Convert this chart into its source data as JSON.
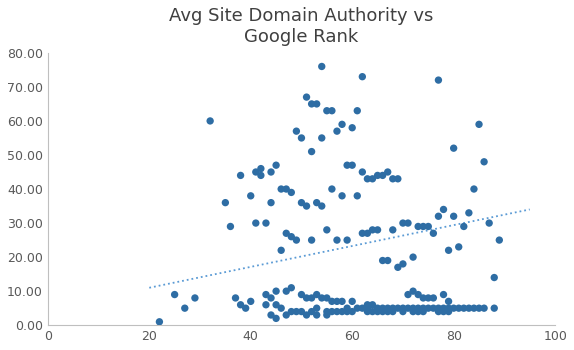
{
  "title": "Avg Site Domain Authority vs\nGoogle Rank",
  "xlim": [
    0,
    100
  ],
  "ylim": [
    0,
    80
  ],
  "xticks": [
    0,
    20,
    40,
    60,
    80,
    100
  ],
  "yticks": [
    0.0,
    10.0,
    20.0,
    30.0,
    40.0,
    50.0,
    60.0,
    70.0,
    80.0
  ],
  "dot_color": "#2E6DA4",
  "trendline_color": "#5B9BD5",
  "background_color": "#FFFFFF",
  "scatter_x": [
    22,
    25,
    27,
    29,
    32,
    35,
    36,
    37,
    38,
    38,
    39,
    40,
    40,
    41,
    41,
    42,
    42,
    43,
    43,
    43,
    44,
    44,
    44,
    44,
    45,
    45,
    45,
    45,
    46,
    46,
    46,
    47,
    47,
    47,
    47,
    48,
    48,
    48,
    48,
    49,
    49,
    49,
    50,
    50,
    50,
    50,
    51,
    51,
    51,
    51,
    52,
    52,
    52,
    52,
    52,
    53,
    53,
    53,
    53,
    53,
    54,
    54,
    54,
    54,
    55,
    55,
    55,
    55,
    55,
    56,
    56,
    56,
    56,
    57,
    57,
    57,
    57,
    58,
    58,
    58,
    58,
    59,
    59,
    59,
    59,
    60,
    60,
    60,
    60,
    61,
    61,
    61,
    62,
    62,
    62,
    62,
    63,
    63,
    63,
    63,
    63,
    64,
    64,
    64,
    64,
    65,
    65,
    65,
    65,
    66,
    66,
    66,
    66,
    67,
    67,
    67,
    67,
    68,
    68,
    68,
    68,
    69,
    69,
    69,
    70,
    70,
    70,
    70,
    71,
    71,
    71,
    72,
    72,
    72,
    72,
    73,
    73,
    73,
    73,
    74,
    74,
    74,
    74,
    75,
    75,
    75,
    76,
    76,
    76,
    77,
    77,
    77,
    77,
    78,
    78,
    78,
    78,
    79,
    79,
    79,
    79,
    80,
    80,
    80,
    81,
    81,
    82,
    82,
    83,
    83,
    84,
    84,
    85,
    85,
    86,
    86,
    87,
    88,
    88,
    89
  ],
  "scatter_y": [
    1,
    9,
    5,
    8,
    60,
    36,
    29,
    8,
    6,
    44,
    5,
    38,
    7,
    45,
    30,
    46,
    44,
    30,
    9,
    6,
    45,
    36,
    8,
    3,
    47,
    10,
    6,
    2,
    40,
    22,
    5,
    40,
    27,
    10,
    3,
    39,
    26,
    11,
    4,
    57,
    25,
    4,
    55,
    36,
    9,
    4,
    67,
    35,
    8,
    3,
    65,
    51,
    25,
    8,
    4,
    65,
    36,
    9,
    5,
    3,
    76,
    55,
    35,
    8,
    63,
    28,
    8,
    4,
    3,
    63,
    40,
    7,
    4,
    57,
    25,
    7,
    4,
    59,
    38,
    7,
    4,
    47,
    25,
    5,
    4,
    58,
    47,
    7,
    4,
    63,
    38,
    5,
    73,
    45,
    27,
    5,
    43,
    27,
    6,
    5,
    4,
    43,
    28,
    6,
    4,
    44,
    28,
    5,
    4,
    44,
    19,
    5,
    4,
    45,
    19,
    5,
    4,
    43,
    28,
    5,
    4,
    43,
    17,
    5,
    30,
    18,
    5,
    4,
    30,
    9,
    5,
    20,
    10,
    5,
    4,
    29,
    9,
    5,
    4,
    29,
    8,
    5,
    4,
    29,
    8,
    5,
    27,
    8,
    5,
    72,
    32,
    5,
    4,
    34,
    9,
    5,
    4,
    22,
    7,
    5,
    4,
    52,
    32,
    5,
    23,
    5,
    29,
    5,
    33,
    5,
    40,
    5,
    59,
    5,
    48,
    5,
    30,
    14,
    5,
    25
  ],
  "trendline_x": [
    20,
    95
  ],
  "trendline_y": [
    11,
    34
  ],
  "title_fontsize": 13,
  "tick_fontsize": 9
}
